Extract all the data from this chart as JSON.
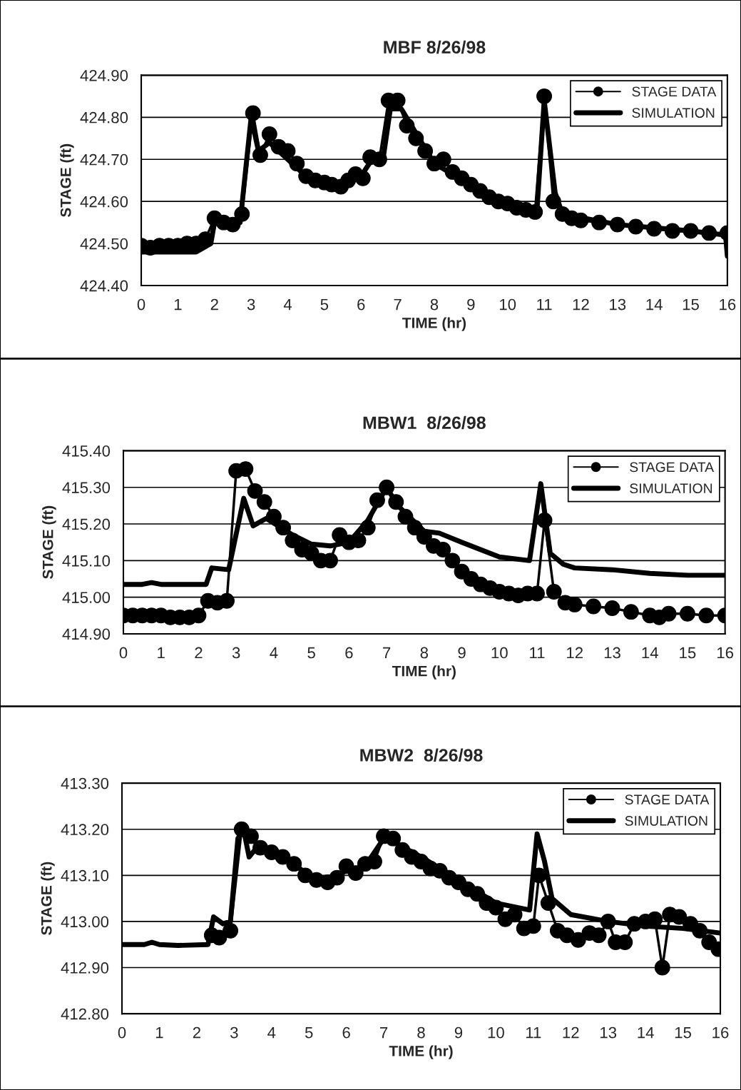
{
  "chart_data": [
    {
      "type": "line",
      "title": "MBF 8/26/98",
      "xlabel": "TIME (hr)",
      "ylabel": "STAGE (ft)",
      "xlim": [
        0,
        16
      ],
      "xticks": [
        0,
        1,
        2,
        3,
        4,
        5,
        6,
        7,
        8,
        9,
        10,
        11,
        12,
        13,
        14,
        15,
        16
      ],
      "ylim": [
        424.4,
        424.9
      ],
      "yticks": [
        {
          "value": 424.4,
          "label": "424.40"
        },
        {
          "value": 424.5,
          "label": "424.50"
        },
        {
          "value": 424.6,
          "label": "424.60"
        },
        {
          "value": 424.7,
          "label": "424.70"
        },
        {
          "value": 424.8,
          "label": "424.80"
        },
        {
          "value": 424.9,
          "label": "424.90"
        }
      ],
      "grid": "y",
      "legend": "top right",
      "series": [
        {
          "name": "STAGE DATA",
          "color": "#000000",
          "marker": "circle",
          "x": [
            0,
            0.25,
            0.5,
            0.75,
            1,
            1.25,
            1.5,
            1.75,
            2,
            2.25,
            2.5,
            2.75,
            3.05,
            3.25,
            3.5,
            3.75,
            4,
            4.25,
            4.5,
            4.75,
            5,
            5.2,
            5.45,
            5.65,
            5.85,
            6.05,
            6.25,
            6.5,
            6.75,
            7,
            7.25,
            7.5,
            7.75,
            8,
            8.25,
            8.5,
            8.75,
            9,
            9.25,
            9.5,
            9.75,
            10,
            10.25,
            10.5,
            10.75,
            11,
            11.25,
            11.5,
            11.75,
            12,
            12.5,
            13,
            13.5,
            14,
            14.5,
            15,
            15.5,
            16
          ],
          "values": [
            424.495,
            424.49,
            424.495,
            424.495,
            424.495,
            424.5,
            424.5,
            424.51,
            424.56,
            424.55,
            424.545,
            424.57,
            424.81,
            424.71,
            424.76,
            424.73,
            424.72,
            424.69,
            424.66,
            424.65,
            424.645,
            424.64,
            424.635,
            424.65,
            424.665,
            424.655,
            424.705,
            424.7,
            424.84,
            424.84,
            424.78,
            424.75,
            424.72,
            424.69,
            424.7,
            424.67,
            424.655,
            424.64,
            424.625,
            424.61,
            424.6,
            424.595,
            424.585,
            424.58,
            424.575,
            424.85,
            424.6,
            424.57,
            424.56,
            424.555,
            424.55,
            424.545,
            424.54,
            424.535,
            424.53,
            424.53,
            424.525,
            424.525
          ]
        },
        {
          "name": "SIMULATION",
          "color": "#000000",
          "marker": "none",
          "x": [
            0,
            1.5,
            1.9,
            2,
            2.7,
            3,
            3.2,
            3.5,
            4.5,
            5.3,
            6,
            6.3,
            6.6,
            6.8,
            7.1,
            8,
            9,
            10,
            10.8,
            11,
            11.3,
            11.5,
            13,
            15,
            15.95,
            16
          ],
          "values": [
            424.48,
            424.48,
            424.5,
            424.55,
            424.55,
            424.8,
            424.72,
            424.74,
            424.66,
            424.64,
            424.66,
            424.7,
            424.7,
            424.82,
            424.82,
            424.69,
            424.64,
            424.59,
            424.575,
            424.84,
            424.62,
            424.57,
            424.545,
            424.53,
            424.52,
            424.47
          ]
        }
      ]
    },
    {
      "type": "line",
      "title": "MBW1  8/26/98",
      "xlabel": "TIME (hr)",
      "ylabel": "STAGE (ft)",
      "xlim": [
        0,
        16
      ],
      "xticks": [
        0,
        1,
        2,
        3,
        4,
        5,
        6,
        7,
        8,
        9,
        10,
        11,
        12,
        13,
        14,
        15,
        16
      ],
      "ylim": [
        414.9,
        415.4
      ],
      "yticks": [
        {
          "value": 414.9,
          "label": "414.90"
        },
        {
          "value": 415.0,
          "label": "415.00"
        },
        {
          "value": 415.1,
          "label": "415.10"
        },
        {
          "value": 415.2,
          "label": "415.20"
        },
        {
          "value": 415.3,
          "label": "415.30"
        },
        {
          "value": 415.4,
          "label": "415.40"
        }
      ],
      "grid": "y",
      "legend": "top right",
      "series": [
        {
          "name": "STAGE DATA",
          "color": "#000000",
          "marker": "circle",
          "x": [
            0,
            0.25,
            0.5,
            0.75,
            1,
            1.25,
            1.5,
            1.75,
            2,
            2.25,
            2.5,
            2.75,
            3,
            3.25,
            3.5,
            3.75,
            4,
            4.25,
            4.5,
            4.75,
            5,
            5.25,
            5.5,
            5.75,
            6,
            6.25,
            6.5,
            6.75,
            7,
            7.25,
            7.5,
            7.75,
            8,
            8.25,
            8.5,
            8.75,
            9,
            9.25,
            9.5,
            9.75,
            10,
            10.25,
            10.5,
            10.75,
            11,
            11.2,
            11.45,
            11.75,
            12,
            12.5,
            13,
            13.5,
            14,
            14.25,
            14.5,
            15,
            15.5,
            16
          ],
          "values": [
            414.95,
            414.95,
            414.95,
            414.95,
            414.95,
            414.945,
            414.945,
            414.945,
            414.95,
            414.99,
            414.985,
            414.99,
            415.345,
            415.35,
            415.29,
            415.26,
            415.22,
            415.19,
            415.155,
            415.13,
            415.12,
            415.1,
            415.1,
            415.17,
            415.15,
            415.155,
            415.19,
            415.265,
            415.3,
            415.26,
            415.22,
            415.19,
            415.165,
            415.14,
            415.13,
            415.1,
            415.07,
            415.05,
            415.035,
            415.025,
            415.015,
            415.01,
            415.005,
            415.01,
            415.01,
            415.21,
            415.015,
            414.985,
            414.98,
            414.975,
            414.97,
            414.96,
            414.95,
            414.945,
            414.955,
            414.955,
            414.95,
            414.95
          ]
        },
        {
          "name": "SIMULATION",
          "color": "#000000",
          "marker": "none",
          "x": [
            0,
            0.5,
            0.75,
            1,
            1.5,
            2.2,
            2.35,
            2.8,
            3.2,
            3.45,
            3.8,
            4.5,
            5,
            5.5,
            6,
            6.5,
            7,
            7.3,
            8,
            8.4,
            9,
            9.5,
            10,
            10.8,
            11.1,
            11.35,
            11.7,
            12,
            13,
            14,
            15,
            16
          ],
          "values": [
            415.035,
            415.035,
            415.04,
            415.035,
            415.035,
            415.035,
            415.08,
            415.075,
            415.27,
            415.195,
            415.215,
            415.17,
            415.145,
            415.14,
            415.15,
            415.21,
            415.3,
            415.25,
            415.18,
            415.175,
            415.15,
            415.13,
            415.11,
            415.1,
            415.31,
            415.12,
            415.09,
            415.08,
            415.075,
            415.065,
            415.06,
            415.06
          ]
        }
      ]
    },
    {
      "type": "line",
      "title": "MBW2  8/26/98",
      "xlabel": "TIME (hr)",
      "ylabel": "STAGE (ft)",
      "xlim": [
        0,
        16
      ],
      "xticks": [
        0,
        1,
        2,
        3,
        4,
        5,
        6,
        7,
        8,
        9,
        10,
        11,
        12,
        13,
        14,
        15,
        16
      ],
      "ylim": [
        412.8,
        413.3
      ],
      "yticks": [
        {
          "value": 412.8,
          "label": "412.80"
        },
        {
          "value": 412.9,
          "label": "412.90"
        },
        {
          "value": 413.0,
          "label": "413.00"
        },
        {
          "value": 413.1,
          "label": "413.10"
        },
        {
          "value": 413.2,
          "label": "413.20"
        },
        {
          "value": 413.3,
          "label": "413.30"
        }
      ],
      "grid": "y",
      "legend": "top right",
      "series": [
        {
          "name": "STAGE DATA",
          "color": "#000000",
          "marker": "circle",
          "x": [
            2.4,
            2.6,
            2.9,
            3.2,
            3.45,
            3.7,
            4,
            4.3,
            4.6,
            4.9,
            5.2,
            5.5,
            5.75,
            6,
            6.25,
            6.5,
            6.75,
            7,
            7.25,
            7.5,
            7.75,
            8,
            8.25,
            8.5,
            8.75,
            9,
            9.25,
            9.5,
            9.75,
            10,
            10.25,
            10.5,
            10.75,
            11,
            11.15,
            11.4,
            11.65,
            11.9,
            12.2,
            12.5,
            12.75,
            13,
            13.2,
            13.45,
            13.7,
            14,
            14.25,
            14.45,
            14.65,
            14.9,
            15.2,
            15.45,
            15.7,
            15.95
          ],
          "values": [
            412.97,
            412.965,
            412.98,
            413.2,
            413.185,
            413.16,
            413.15,
            413.14,
            413.125,
            413.1,
            413.09,
            413.085,
            413.095,
            413.12,
            413.105,
            413.125,
            413.13,
            413.185,
            413.18,
            413.155,
            413.14,
            413.13,
            413.115,
            413.11,
            413.095,
            413.085,
            413.07,
            413.06,
            413.04,
            413.03,
            413.005,
            413.015,
            412.985,
            412.99,
            413.1,
            413.04,
            412.98,
            412.97,
            412.96,
            412.975,
            412.97,
            413.0,
            412.955,
            412.955,
            412.995,
            413.0,
            413.005,
            412.9,
            413.015,
            413.01,
            412.995,
            412.98,
            412.955,
            412.94
          ]
        },
        {
          "name": "SIMULATION",
          "color": "#000000",
          "marker": "none",
          "x": [
            0,
            0.6,
            0.8,
            1,
            1.5,
            2.3,
            2.45,
            2.7,
            2.9,
            3.1,
            3.25,
            3.4,
            3.6,
            4.5,
            5,
            5.5,
            6,
            6.5,
            7,
            7.2,
            8,
            9,
            10,
            10.9,
            11.1,
            11.3,
            11.5,
            12,
            13,
            14,
            15,
            16
          ],
          "values": [
            412.95,
            412.95,
            412.955,
            412.95,
            412.948,
            412.95,
            413.01,
            412.995,
            413.0,
            413.18,
            413.2,
            413.14,
            413.16,
            413.13,
            413.1,
            413.09,
            413.11,
            413.12,
            413.18,
            413.175,
            413.14,
            413.09,
            413.04,
            413.025,
            413.19,
            413.13,
            413.05,
            413.015,
            413.0,
            412.99,
            412.985,
            412.975
          ]
        }
      ]
    }
  ]
}
